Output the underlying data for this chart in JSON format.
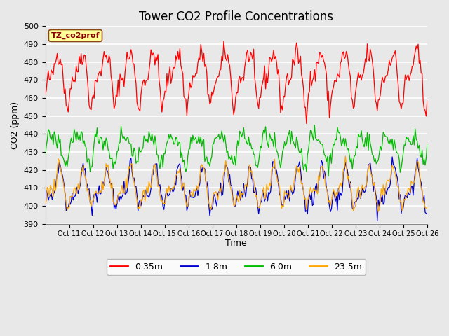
{
  "title": "Tower CO2 Profile Concentrations",
  "xlabel": "Time",
  "ylabel": "CO2 (ppm)",
  "ylim": [
    390,
    500
  ],
  "yticks": [
    390,
    400,
    410,
    420,
    430,
    440,
    450,
    460,
    470,
    480,
    490,
    500
  ],
  "n_days": 16,
  "n_points": 384,
  "x_tick_labels": [
    "Oct 11",
    "Oct 12",
    "Oct 13",
    "Oct 14",
    "Oct 15",
    "Oct 16",
    "Oct 17",
    "Oct 18",
    "Oct 19",
    "Oct 20",
    "Oct 21",
    "Oct 22",
    "Oct 23",
    "Oct 24",
    "Oct 25",
    "Oct 26"
  ],
  "colors": {
    "red": "#FF0000",
    "blue": "#0000CC",
    "green": "#00BB00",
    "orange": "#FFA500"
  },
  "legend_label": "TZ_co2prof",
  "series_labels": [
    "0.35m",
    "1.8m",
    "6.0m",
    "23.5m"
  ],
  "bg_color": "#E8E8E8",
  "title_fontsize": 12,
  "axis_fontsize": 9,
  "tick_fontsize": 8
}
